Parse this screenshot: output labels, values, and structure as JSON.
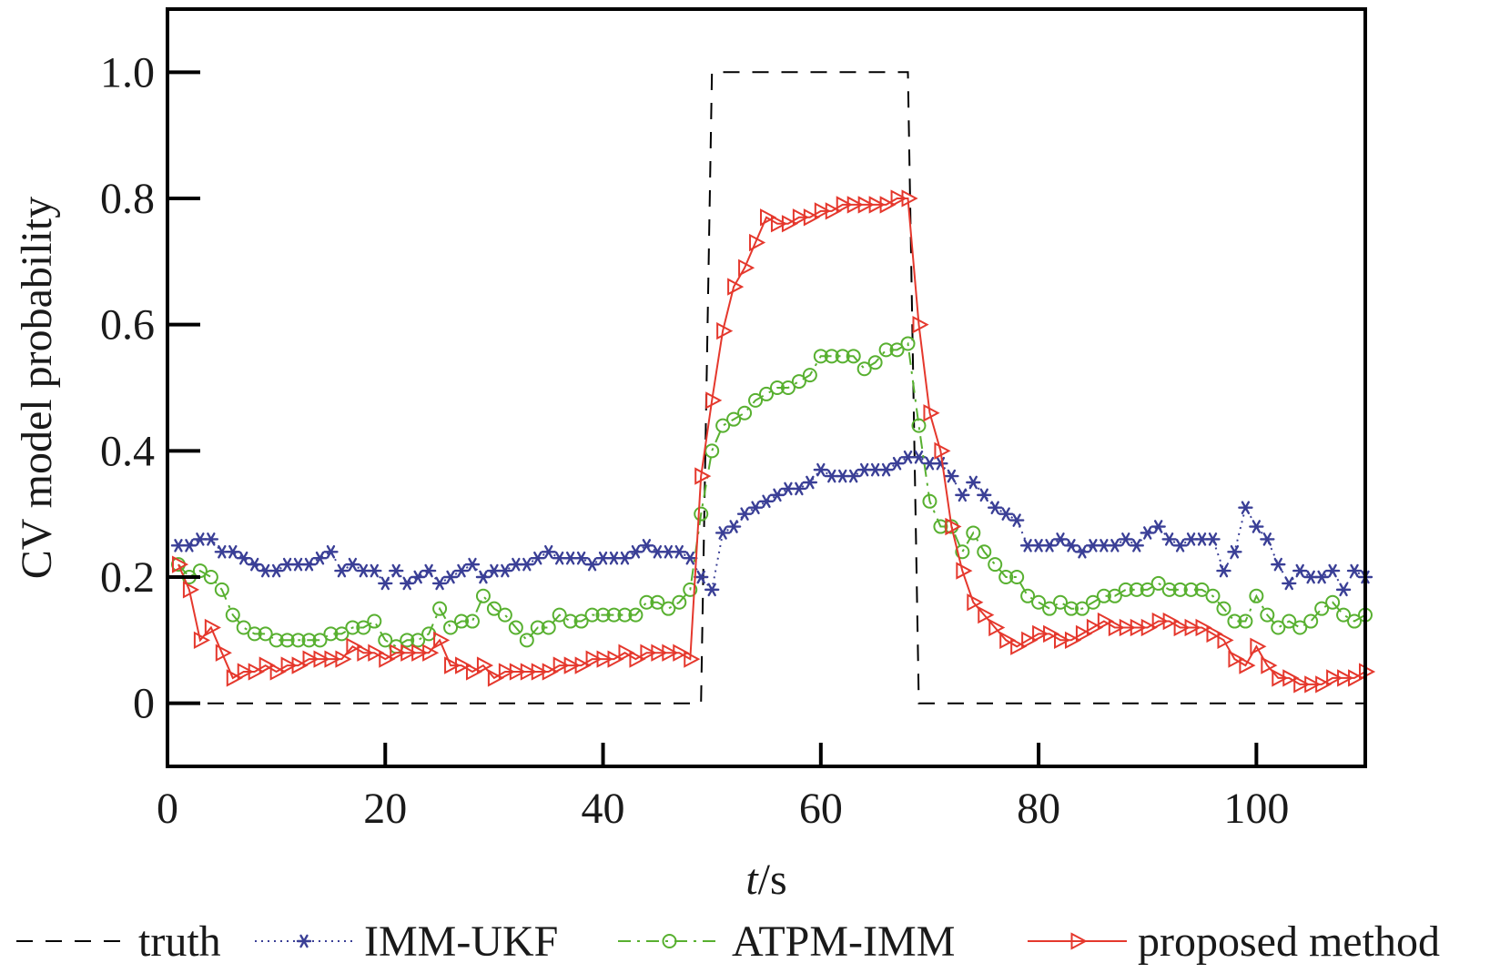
{
  "chart_data": {
    "type": "line",
    "ylabel": "CV model probability",
    "xlabel_italic": "t",
    "xlabel_rest": "/s",
    "xlim": [
      0,
      110
    ],
    "ylim": [
      -0.1,
      1.1
    ],
    "xticks": [
      0,
      20,
      40,
      60,
      80,
      100
    ],
    "xtick_labels": [
      "0",
      "20",
      "40",
      "60",
      "80",
      "100"
    ],
    "yticks": [
      0,
      0.2,
      0.4,
      0.6,
      0.8,
      1.0
    ],
    "ytick_labels": [
      "0",
      "0.2",
      "0.4",
      "0.6",
      "0.8",
      "1.0"
    ],
    "grid": false,
    "legend_position": "bottom",
    "series": [
      {
        "name": "truth",
        "color": "#000000",
        "style": "dashed",
        "marker": "none",
        "x": [
          1,
          49,
          50,
          68,
          69,
          110
        ],
        "y": [
          0,
          0,
          1,
          1,
          0,
          0
        ]
      },
      {
        "name": "IMM-UKF",
        "color": "#3a3f96",
        "style": "dotted",
        "marker": "star",
        "x": [
          1,
          2,
          3,
          4,
          5,
          6,
          7,
          8,
          9,
          10,
          11,
          12,
          13,
          14,
          15,
          16,
          17,
          18,
          19,
          20,
          21,
          22,
          23,
          24,
          25,
          26,
          27,
          28,
          29,
          30,
          31,
          32,
          33,
          34,
          35,
          36,
          37,
          38,
          39,
          40,
          41,
          42,
          43,
          44,
          45,
          46,
          47,
          48,
          49,
          50,
          51,
          52,
          53,
          54,
          55,
          56,
          57,
          58,
          59,
          60,
          61,
          62,
          63,
          64,
          65,
          66,
          67,
          68,
          69,
          70,
          71,
          72,
          73,
          74,
          75,
          76,
          77,
          78,
          79,
          80,
          81,
          82,
          83,
          84,
          85,
          86,
          87,
          88,
          89,
          90,
          91,
          92,
          93,
          94,
          95,
          96,
          97,
          98,
          99,
          100,
          101,
          102,
          103,
          104,
          105,
          106,
          107,
          108,
          109,
          110
        ],
        "y": [
          0.25,
          0.25,
          0.26,
          0.26,
          0.24,
          0.24,
          0.23,
          0.22,
          0.21,
          0.21,
          0.22,
          0.22,
          0.22,
          0.23,
          0.24,
          0.21,
          0.22,
          0.21,
          0.21,
          0.19,
          0.21,
          0.19,
          0.2,
          0.21,
          0.19,
          0.2,
          0.21,
          0.22,
          0.2,
          0.21,
          0.21,
          0.22,
          0.22,
          0.23,
          0.24,
          0.23,
          0.23,
          0.23,
          0.22,
          0.23,
          0.23,
          0.23,
          0.24,
          0.25,
          0.24,
          0.24,
          0.24,
          0.23,
          0.2,
          0.18,
          0.27,
          0.28,
          0.3,
          0.31,
          0.32,
          0.33,
          0.34,
          0.34,
          0.35,
          0.37,
          0.36,
          0.36,
          0.36,
          0.37,
          0.37,
          0.37,
          0.38,
          0.39,
          0.39,
          0.38,
          0.38,
          0.36,
          0.33,
          0.35,
          0.33,
          0.31,
          0.3,
          0.29,
          0.25,
          0.25,
          0.25,
          0.26,
          0.25,
          0.24,
          0.25,
          0.25,
          0.25,
          0.26,
          0.25,
          0.27,
          0.28,
          0.26,
          0.25,
          0.26,
          0.26,
          0.26,
          0.21,
          0.24,
          0.31,
          0.28,
          0.26,
          0.22,
          0.19,
          0.21,
          0.2,
          0.2,
          0.21,
          0.18,
          0.21,
          0.2
        ]
      },
      {
        "name": "ATPM-IMM",
        "color": "#58b030",
        "style": "dashdot",
        "marker": "circle",
        "x": [
          1,
          2,
          3,
          4,
          5,
          6,
          7,
          8,
          9,
          10,
          11,
          12,
          13,
          14,
          15,
          16,
          17,
          18,
          19,
          20,
          21,
          22,
          23,
          24,
          25,
          26,
          27,
          28,
          29,
          30,
          31,
          32,
          33,
          34,
          35,
          36,
          37,
          38,
          39,
          40,
          41,
          42,
          43,
          44,
          45,
          46,
          47,
          48,
          49,
          50,
          51,
          52,
          53,
          54,
          55,
          56,
          57,
          58,
          59,
          60,
          61,
          62,
          63,
          64,
          65,
          66,
          67,
          68,
          69,
          70,
          71,
          72,
          73,
          74,
          75,
          76,
          77,
          78,
          79,
          80,
          81,
          82,
          83,
          84,
          85,
          86,
          87,
          88,
          89,
          90,
          91,
          92,
          93,
          94,
          95,
          96,
          97,
          98,
          99,
          100,
          101,
          102,
          103,
          104,
          105,
          106,
          107,
          108,
          109,
          110
        ],
        "y": [
          0.22,
          0.2,
          0.21,
          0.2,
          0.18,
          0.14,
          0.12,
          0.11,
          0.11,
          0.1,
          0.1,
          0.1,
          0.1,
          0.1,
          0.11,
          0.11,
          0.12,
          0.12,
          0.13,
          0.1,
          0.09,
          0.1,
          0.1,
          0.11,
          0.15,
          0.12,
          0.13,
          0.13,
          0.17,
          0.15,
          0.14,
          0.12,
          0.1,
          0.12,
          0.12,
          0.14,
          0.13,
          0.13,
          0.14,
          0.14,
          0.14,
          0.14,
          0.14,
          0.16,
          0.16,
          0.15,
          0.16,
          0.18,
          0.3,
          0.4,
          0.44,
          0.45,
          0.46,
          0.48,
          0.49,
          0.5,
          0.5,
          0.51,
          0.52,
          0.55,
          0.55,
          0.55,
          0.55,
          0.53,
          0.54,
          0.56,
          0.56,
          0.57,
          0.44,
          0.32,
          0.28,
          0.28,
          0.24,
          0.27,
          0.24,
          0.22,
          0.2,
          0.2,
          0.17,
          0.16,
          0.15,
          0.16,
          0.15,
          0.15,
          0.16,
          0.17,
          0.17,
          0.18,
          0.18,
          0.18,
          0.19,
          0.18,
          0.18,
          0.18,
          0.18,
          0.17,
          0.15,
          0.13,
          0.13,
          0.17,
          0.14,
          0.12,
          0.13,
          0.12,
          0.13,
          0.15,
          0.16,
          0.14,
          0.13,
          0.14
        ]
      },
      {
        "name": "proposed method",
        "color": "#e5382d",
        "style": "solid",
        "marker": "triangle-right",
        "x": [
          1,
          2,
          3,
          4,
          5,
          6,
          7,
          8,
          9,
          10,
          11,
          12,
          13,
          14,
          15,
          16,
          17,
          18,
          19,
          20,
          21,
          22,
          23,
          24,
          25,
          26,
          27,
          28,
          29,
          30,
          31,
          32,
          33,
          34,
          35,
          36,
          37,
          38,
          39,
          40,
          41,
          42,
          43,
          44,
          45,
          46,
          47,
          48,
          49,
          50,
          51,
          52,
          53,
          54,
          55,
          56,
          57,
          58,
          59,
          60,
          61,
          62,
          63,
          64,
          65,
          66,
          67,
          68,
          69,
          70,
          71,
          72,
          73,
          74,
          75,
          76,
          77,
          78,
          79,
          80,
          81,
          82,
          83,
          84,
          85,
          86,
          87,
          88,
          89,
          90,
          91,
          92,
          93,
          94,
          95,
          96,
          97,
          98,
          99,
          100,
          101,
          102,
          103,
          104,
          105,
          106,
          107,
          108,
          109,
          110
        ],
        "y": [
          0.22,
          0.18,
          0.1,
          0.12,
          0.08,
          0.04,
          0.05,
          0.05,
          0.06,
          0.05,
          0.06,
          0.06,
          0.07,
          0.07,
          0.07,
          0.07,
          0.09,
          0.08,
          0.08,
          0.07,
          0.08,
          0.08,
          0.08,
          0.08,
          0.1,
          0.06,
          0.06,
          0.05,
          0.06,
          0.04,
          0.05,
          0.05,
          0.05,
          0.05,
          0.05,
          0.06,
          0.06,
          0.06,
          0.07,
          0.07,
          0.07,
          0.08,
          0.07,
          0.08,
          0.08,
          0.08,
          0.08,
          0.07,
          0.36,
          0.48,
          0.59,
          0.66,
          0.69,
          0.73,
          0.77,
          0.76,
          0.76,
          0.77,
          0.77,
          0.78,
          0.78,
          0.79,
          0.79,
          0.79,
          0.79,
          0.79,
          0.8,
          0.8,
          0.6,
          0.46,
          0.4,
          0.28,
          0.21,
          0.16,
          0.14,
          0.12,
          0.1,
          0.09,
          0.1,
          0.11,
          0.11,
          0.1,
          0.1,
          0.11,
          0.12,
          0.13,
          0.12,
          0.12,
          0.12,
          0.12,
          0.13,
          0.13,
          0.12,
          0.12,
          0.12,
          0.11,
          0.1,
          0.07,
          0.06,
          0.09,
          0.06,
          0.04,
          0.04,
          0.03,
          0.03,
          0.03,
          0.04,
          0.04,
          0.04,
          0.05
        ]
      }
    ]
  }
}
